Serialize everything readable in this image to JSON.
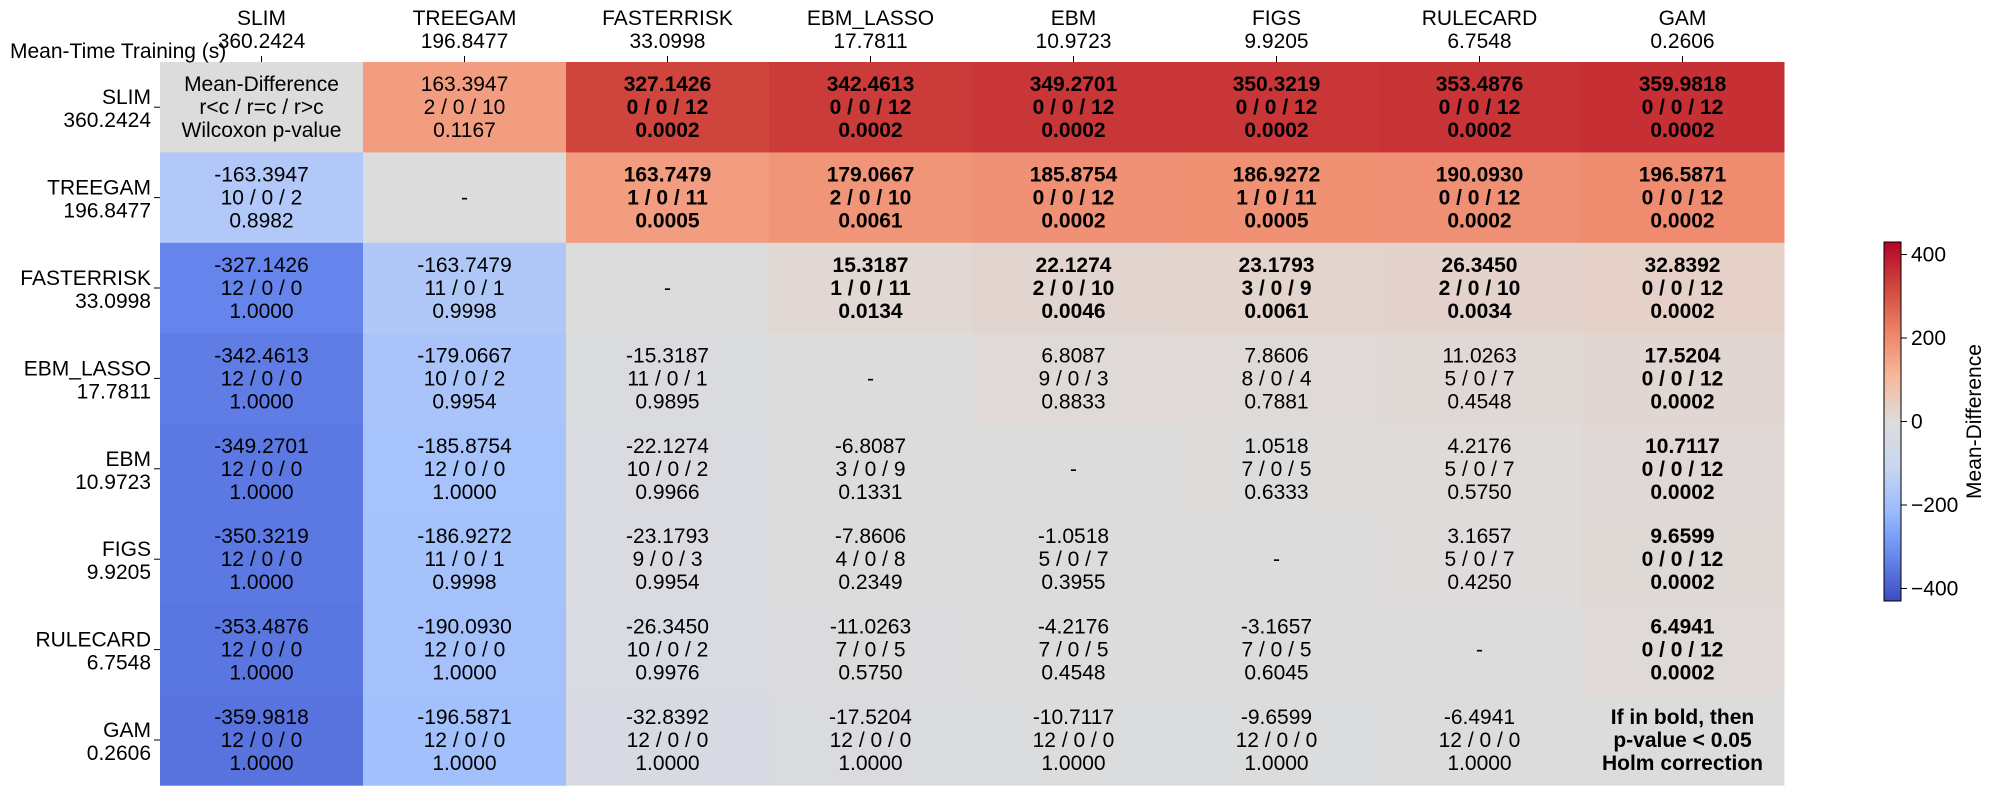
{
  "chart_data": {
    "type": "heatmap",
    "corner_label": "Mean-Time Training (s)",
    "models": [
      "SLIM",
      "TREEGAM",
      "FASTERRISK",
      "EBM_LASSO",
      "EBM",
      "FIGS",
      "RULECARD",
      "GAM"
    ],
    "mean_times": [
      "360.2424",
      "196.8477",
      "33.0998",
      "17.7811",
      "10.9723",
      "9.9205",
      "6.7548",
      "0.2606"
    ],
    "colorbar": {
      "label": "Mean-Difference",
      "vmin": -430,
      "vmax": 430,
      "ticks": [
        400,
        200,
        0,
        -200,
        -400
      ],
      "tick_labels": [
        "400",
        "200",
        "0",
        "−200",
        "−400"
      ]
    },
    "legend_top_left": [
      "Mean-Difference",
      "r<c / r=c / r>c",
      "Wilcoxon p-value"
    ],
    "legend_bottom_right": [
      "If in bold, then",
      "p-value < 0.05",
      "Holm correction"
    ],
    "diagonal_symbol": "-",
    "cells": [
      [
        null,
        {
          "d": "163.3947",
          "c": "2 / 0 / 10",
          "p": "0.1167",
          "bold": false
        },
        {
          "d": "327.1426",
          "c": "0 / 0 / 12",
          "p": "0.0002",
          "bold": true
        },
        {
          "d": "342.4613",
          "c": "0 / 0 / 12",
          "p": "0.0002",
          "bold": true
        },
        {
          "d": "349.2701",
          "c": "0 / 0 / 12",
          "p": "0.0002",
          "bold": true
        },
        {
          "d": "350.3219",
          "c": "0 / 0 / 12",
          "p": "0.0002",
          "bold": true
        },
        {
          "d": "353.4876",
          "c": "0 / 0 / 12",
          "p": "0.0002",
          "bold": true
        },
        {
          "d": "359.9818",
          "c": "0 / 0 / 12",
          "p": "0.0002",
          "bold": true
        }
      ],
      [
        {
          "d": "-163.3947",
          "c": "10 / 0 / 2",
          "p": "0.8982",
          "bold": false
        },
        null,
        {
          "d": "163.7479",
          "c": "1 / 0 / 11",
          "p": "0.0005",
          "bold": true
        },
        {
          "d": "179.0667",
          "c": "2 / 0 / 10",
          "p": "0.0061",
          "bold": true
        },
        {
          "d": "185.8754",
          "c": "0 / 0 / 12",
          "p": "0.0002",
          "bold": true
        },
        {
          "d": "186.9272",
          "c": "1 / 0 / 11",
          "p": "0.0005",
          "bold": true
        },
        {
          "d": "190.0930",
          "c": "0 / 0 / 12",
          "p": "0.0002",
          "bold": true
        },
        {
          "d": "196.5871",
          "c": "0 / 0 / 12",
          "p": "0.0002",
          "bold": true
        }
      ],
      [
        {
          "d": "-327.1426",
          "c": "12 / 0 / 0",
          "p": "1.0000",
          "bold": false
        },
        {
          "d": "-163.7479",
          "c": "11 / 0 / 1",
          "p": "0.9998",
          "bold": false
        },
        null,
        {
          "d": "15.3187",
          "c": "1 / 0 / 11",
          "p": "0.0134",
          "bold": true
        },
        {
          "d": "22.1274",
          "c": "2 / 0 / 10",
          "p": "0.0046",
          "bold": true
        },
        {
          "d": "23.1793",
          "c": "3 / 0 / 9",
          "p": "0.0061",
          "bold": true
        },
        {
          "d": "26.3450",
          "c": "2 / 0 / 10",
          "p": "0.0034",
          "bold": true
        },
        {
          "d": "32.8392",
          "c": "0 / 0 / 12",
          "p": "0.0002",
          "bold": true
        }
      ],
      [
        {
          "d": "-342.4613",
          "c": "12 / 0 / 0",
          "p": "1.0000",
          "bold": false
        },
        {
          "d": "-179.0667",
          "c": "10 / 0 / 2",
          "p": "0.9954",
          "bold": false
        },
        {
          "d": "-15.3187",
          "c": "11 / 0 / 1",
          "p": "0.9895",
          "bold": false
        },
        null,
        {
          "d": "6.8087",
          "c": "9 / 0 / 3",
          "p": "0.8833",
          "bold": false
        },
        {
          "d": "7.8606",
          "c": "8 / 0 / 4",
          "p": "0.7881",
          "bold": false
        },
        {
          "d": "11.0263",
          "c": "5 / 0 / 7",
          "p": "0.4548",
          "bold": false
        },
        {
          "d": "17.5204",
          "c": "0 / 0 / 12",
          "p": "0.0002",
          "bold": true
        }
      ],
      [
        {
          "d": "-349.2701",
          "c": "12 / 0 / 0",
          "p": "1.0000",
          "bold": false
        },
        {
          "d": "-185.8754",
          "c": "12 / 0 / 0",
          "p": "1.0000",
          "bold": false
        },
        {
          "d": "-22.1274",
          "c": "10 / 0 / 2",
          "p": "0.9966",
          "bold": false
        },
        {
          "d": "-6.8087",
          "c": "3 / 0 / 9",
          "p": "0.1331",
          "bold": false
        },
        null,
        {
          "d": "1.0518",
          "c": "7 / 0 / 5",
          "p": "0.6333",
          "bold": false
        },
        {
          "d": "4.2176",
          "c": "5 / 0 / 7",
          "p": "0.5750",
          "bold": false
        },
        {
          "d": "10.7117",
          "c": "0 / 0 / 12",
          "p": "0.0002",
          "bold": true
        }
      ],
      [
        {
          "d": "-350.3219",
          "c": "12 / 0 / 0",
          "p": "1.0000",
          "bold": false
        },
        {
          "d": "-186.9272",
          "c": "11 / 0 / 1",
          "p": "0.9998",
          "bold": false
        },
        {
          "d": "-23.1793",
          "c": "9 / 0 / 3",
          "p": "0.9954",
          "bold": false
        },
        {
          "d": "-7.8606",
          "c": "4 / 0 / 8",
          "p": "0.2349",
          "bold": false
        },
        {
          "d": "-1.0518",
          "c": "5 / 0 / 7",
          "p": "0.3955",
          "bold": false
        },
        null,
        {
          "d": "3.1657",
          "c": "5 / 0 / 7",
          "p": "0.4250",
          "bold": false
        },
        {
          "d": "9.6599",
          "c": "0 / 0 / 12",
          "p": "0.0002",
          "bold": true
        }
      ],
      [
        {
          "d": "-353.4876",
          "c": "12 / 0 / 0",
          "p": "1.0000",
          "bold": false
        },
        {
          "d": "-190.0930",
          "c": "12 / 0 / 0",
          "p": "1.0000",
          "bold": false
        },
        {
          "d": "-26.3450",
          "c": "10 / 0 / 2",
          "p": "0.9976",
          "bold": false
        },
        {
          "d": "-11.0263",
          "c": "7 / 0 / 5",
          "p": "0.5750",
          "bold": false
        },
        {
          "d": "-4.2176",
          "c": "7 / 0 / 5",
          "p": "0.4548",
          "bold": false
        },
        {
          "d": "-3.1657",
          "c": "7 / 0 / 5",
          "p": "0.6045",
          "bold": false
        },
        null,
        {
          "d": "6.4941",
          "c": "0 / 0 / 12",
          "p": "0.0002",
          "bold": true
        }
      ],
      [
        {
          "d": "-359.9818",
          "c": "12 / 0 / 0",
          "p": "1.0000",
          "bold": false
        },
        {
          "d": "-196.5871",
          "c": "12 / 0 / 0",
          "p": "1.0000",
          "bold": false
        },
        {
          "d": "-32.8392",
          "c": "12 / 0 / 0",
          "p": "1.0000",
          "bold": false
        },
        {
          "d": "-17.5204",
          "c": "12 / 0 / 0",
          "p": "1.0000",
          "bold": false
        },
        {
          "d": "-10.7117",
          "c": "12 / 0 / 0",
          "p": "1.0000",
          "bold": false
        },
        {
          "d": "-9.6599",
          "c": "12 / 0 / 0",
          "p": "1.0000",
          "bold": false
        },
        {
          "d": "-6.4941",
          "c": "12 / 0 / 0",
          "p": "1.0000",
          "bold": false
        },
        null
      ]
    ],
    "colors": {
      "diagonal": "#dddcdc",
      "cmap_stops": [
        "#3b4cc0",
        "#6788ee",
        "#9abbff",
        "#c9d7f0",
        "#dddcdc",
        "#f7b89c",
        "#ed8366",
        "#d0473d",
        "#b40426"
      ]
    }
  }
}
